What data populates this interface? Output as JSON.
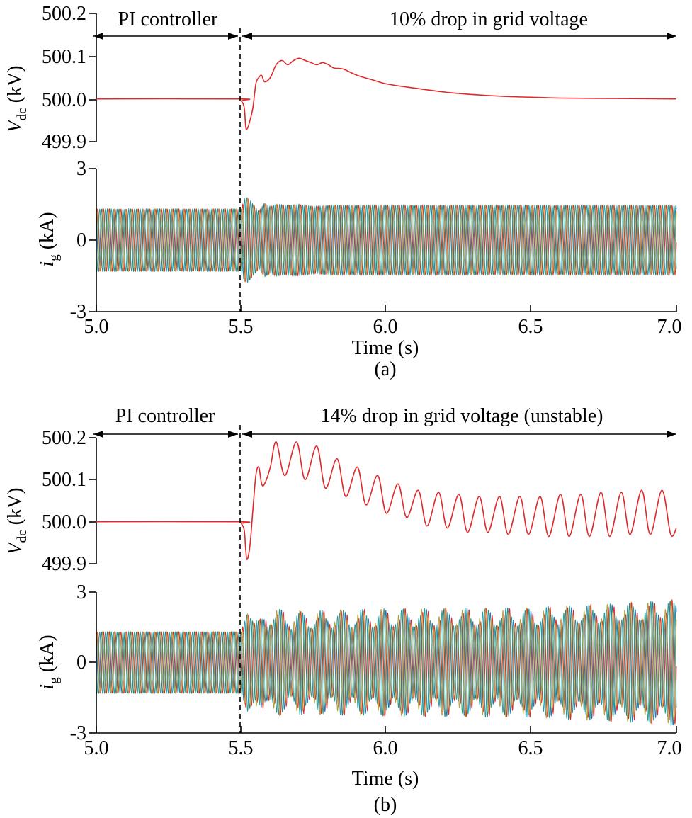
{
  "panels": [
    {
      "caption": "(a)",
      "xlabel": "Time (s)",
      "x_ticks": [
        "5.0",
        "5.5",
        "6.0",
        "6.5",
        "7.0"
      ],
      "annotation_left": "PI controller",
      "annotation_right": "10% drop in grid voltage",
      "vdc_ylabel_main": "V",
      "vdc_ylabel_sub": "dc",
      "vdc_ylabel_unit": " (kV)",
      "vdc_ticks": [
        "500.2",
        "500.1",
        "500.0",
        "499.9"
      ],
      "ig_ylabel_main": "i",
      "ig_ylabel_sub": "g",
      "ig_ylabel_unit": " (kA)",
      "ig_ticks": [
        "3",
        "0",
        "-3"
      ]
    },
    {
      "caption": "(b)",
      "xlabel": "Time (s)",
      "x_ticks": [
        "5.0",
        "5.5",
        "6.0",
        "6.5",
        "7.0"
      ],
      "annotation_left": "PI controller",
      "annotation_right": "14% drop in grid voltage (unstable)",
      "vdc_ylabel_main": "V",
      "vdc_ylabel_sub": "dc",
      "vdc_ylabel_unit": " (kV)",
      "vdc_ticks": [
        "500.2",
        "500.1",
        "500.0",
        "499.9"
      ],
      "ig_ylabel_main": "i",
      "ig_ylabel_sub": "g",
      "ig_ylabel_unit": " (kA)",
      "ig_ticks": [
        "3",
        "0",
        "-3"
      ]
    }
  ],
  "colors": {
    "vdc_line": "#e0292b",
    "phase_a": "#e0292b",
    "phase_b": "#1f77b4",
    "phase_c": "#2a9d8f",
    "phase_d": "#b5a23a",
    "axis": "#000000"
  },
  "chart_data": [
    {
      "type": "line",
      "panel": "(a)",
      "subplot": "Vdc",
      "xlim": [
        5.0,
        7.0
      ],
      "ylim": [
        499.9,
        500.2
      ],
      "event_time": 5.5,
      "series": [
        {
          "x": [
            5.0,
            5.49,
            5.5,
            5.51,
            5.515,
            5.52,
            5.53,
            5.54,
            5.55,
            5.56,
            5.57,
            5.58,
            5.6,
            5.62,
            5.64,
            5.66,
            5.68,
            5.7,
            5.72,
            5.74,
            5.76,
            5.78,
            5.8,
            5.82,
            5.85,
            5.9,
            5.95,
            6.0,
            6.1,
            6.2,
            6.3,
            6.4,
            6.5,
            6.6,
            6.8,
            7.0
          ],
          "values": [
            500.0,
            500.0,
            499.995,
            499.98,
            499.935,
            499.93,
            499.95,
            499.98,
            500.035,
            500.05,
            500.055,
            500.04,
            500.05,
            500.08,
            500.09,
            500.08,
            500.09,
            500.095,
            500.09,
            500.085,
            500.08,
            500.085,
            500.08,
            500.072,
            500.07,
            500.055,
            500.045,
            500.035,
            500.025,
            500.016,
            500.01,
            500.006,
            500.004,
            500.002,
            500.001,
            500.0
          ]
        }
      ]
    },
    {
      "type": "line",
      "panel": "(a)",
      "subplot": "ig",
      "xlim": [
        5.0,
        7.0
      ],
      "ylim": [
        -3,
        3
      ],
      "event_time": 5.5,
      "phases": 3,
      "frequency_hz": 50,
      "envelope": {
        "x": [
          5.0,
          5.5,
          5.51,
          5.52,
          5.54,
          5.56,
          5.58,
          5.6,
          5.62,
          5.65,
          5.7,
          5.75,
          5.8,
          6.0,
          6.5,
          7.0
        ],
        "values": [
          1.3,
          1.3,
          1.7,
          1.8,
          1.5,
          1.2,
          1.55,
          1.4,
          1.5,
          1.45,
          1.5,
          1.4,
          1.45,
          1.45,
          1.45,
          1.45
        ]
      }
    },
    {
      "type": "line",
      "panel": "(b)",
      "subplot": "Vdc",
      "xlim": [
        5.0,
        7.0
      ],
      "ylim": [
        499.9,
        500.2
      ],
      "event_time": 5.5,
      "series": [
        {
          "x": [
            5.0,
            5.49,
            5.5,
            5.51,
            5.515,
            5.52,
            5.53,
            5.54,
            5.55,
            5.56,
            5.57,
            5.58,
            5.6,
            5.62,
            5.65,
            5.69,
            5.72,
            5.76,
            5.79,
            5.83,
            5.86,
            5.9,
            5.93,
            5.97,
            6.0,
            6.04,
            6.07,
            6.11,
            6.14,
            6.18,
            6.21,
            6.25,
            6.28,
            6.32,
            6.35,
            6.39,
            6.42,
            6.46,
            6.49,
            6.53,
            6.56,
            6.6,
            6.63,
            6.67,
            6.7,
            6.74,
            6.77,
            6.81,
            6.84,
            6.88,
            6.91,
            6.95,
            6.98,
            7.0
          ],
          "values": [
            500.0,
            500.0,
            499.995,
            499.98,
            499.935,
            499.91,
            499.945,
            500.03,
            500.11,
            500.13,
            500.09,
            500.09,
            500.13,
            500.19,
            500.11,
            500.19,
            500.1,
            500.18,
            500.08,
            500.15,
            500.06,
            500.13,
            500.04,
            500.11,
            500.02,
            500.09,
            500.01,
            500.075,
            499.99,
            500.07,
            499.985,
            500.065,
            499.975,
            500.06,
            499.975,
            500.06,
            499.97,
            500.06,
            499.97,
            500.06,
            499.965,
            500.065,
            499.965,
            500.065,
            499.965,
            500.07,
            499.965,
            500.07,
            499.97,
            500.075,
            499.97,
            500.075,
            499.97,
            499.985
          ]
        }
      ]
    },
    {
      "type": "line",
      "panel": "(b)",
      "subplot": "ig",
      "xlim": [
        5.0,
        7.0
      ],
      "ylim": [
        -3,
        3
      ],
      "event_time": 5.5,
      "phases": 3,
      "frequency_hz": 50,
      "envelope": {
        "x": [
          5.0,
          5.5,
          5.52,
          5.56,
          5.6,
          5.65,
          6.0,
          6.5,
          6.9,
          7.0
        ],
        "values": [
          1.3,
          1.3,
          2.1,
          1.4,
          2.0,
          1.8,
          1.9,
          1.95,
          2.2,
          2.3
        ]
      },
      "oscillation": {
        "amplitude": 0.4,
        "period_s": 0.071
      }
    }
  ]
}
